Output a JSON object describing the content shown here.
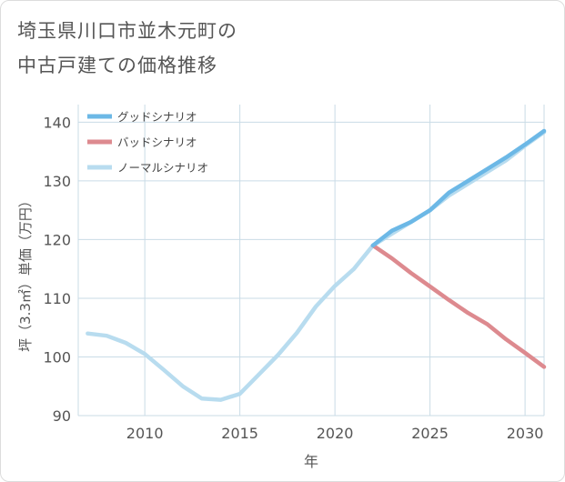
{
  "chart_data": {
    "type": "line",
    "title_lines": [
      "埼玉県川口市並木元町の",
      "中古戸建ての価格推移"
    ],
    "xlabel": "年",
    "ylabel": "坪（3.3㎡）単価（万円）",
    "xlim": [
      2006.5,
      2031
    ],
    "ylim": [
      90,
      143
    ],
    "x_ticks": [
      2010,
      2015,
      2020,
      2025,
      2030
    ],
    "y_ticks": [
      90,
      100,
      110,
      120,
      130,
      140
    ],
    "grid": true,
    "legend_position": "top-left",
    "series": [
      {
        "name": "グッドシナリオ",
        "color": "#6cb8e6",
        "x": [
          2022,
          2023,
          2024,
          2025,
          2026,
          2027,
          2028,
          2029,
          2030,
          2031
        ],
        "values": [
          119,
          121.5,
          123,
          125,
          128,
          130,
          132,
          134,
          136.2,
          138.5
        ]
      },
      {
        "name": "バッドシナリオ",
        "color": "#dd8a8f",
        "x": [
          2022,
          2023,
          2024,
          2025,
          2026,
          2027,
          2028,
          2029,
          2030,
          2031
        ],
        "values": [
          119,
          116.8,
          114.3,
          112,
          109.7,
          107.5,
          105.6,
          103,
          100.7,
          98.3
        ]
      },
      {
        "name": "ノーマルシナリオ",
        "color": "#b8dcef",
        "x": [
          2007,
          2008,
          2009,
          2010,
          2011,
          2012,
          2013,
          2014,
          2015,
          2016,
          2017,
          2018,
          2019,
          2020,
          2021,
          2022,
          2023,
          2024,
          2025,
          2026,
          2027,
          2028,
          2029,
          2030,
          2031
        ],
        "values": [
          104,
          103.6,
          102.4,
          100.5,
          97.8,
          95,
          92.9,
          92.7,
          93.7,
          97,
          100.3,
          104.1,
          108.6,
          112.1,
          115,
          119,
          121,
          123,
          125,
          127.5,
          129.5,
          131.5,
          133.5,
          136,
          138.3
        ]
      }
    ]
  }
}
